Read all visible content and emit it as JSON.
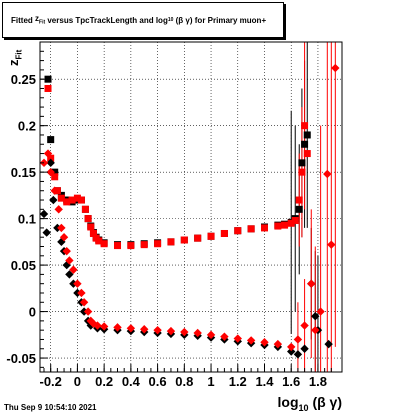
{
  "title": {
    "prefix": "Fitted",
    "z": "z",
    "zsub": "Fit",
    "mid": "versus TpcTrackLength and log",
    "logsub": "10",
    "beta_gamma": "(β γ)",
    "suffix": "for Primary muon+"
  },
  "footer": "Thu Sep  9 10:54:10 2021",
  "axis_labels": {
    "x_main": "log",
    "x_sub": "10",
    "x_tail": "(β γ)",
    "y_main": "z",
    "y_sub": "Fit"
  },
  "chart_data": {
    "type": "scatter",
    "xlim": [
      -0.28,
      1.98
    ],
    "ylim": [
      -0.065,
      0.29
    ],
    "grid": true,
    "xticks": [
      -0.2,
      0,
      0.2,
      0.4,
      0.6,
      0.8,
      1,
      1.2,
      1.4,
      1.6,
      1.8
    ],
    "xtick_labels": [
      "-0.2",
      "0",
      "0.2",
      "0.4",
      "0.6",
      "0.8",
      "1",
      "1.2",
      "1.4",
      "1.6",
      "1.8"
    ],
    "yticks": [
      -0.05,
      0,
      0.05,
      0.1,
      0.15,
      0.2,
      0.25
    ],
    "ytick_labels": [
      "-0.05",
      "0",
      "0.05",
      "0.1",
      "0.15",
      "0.2",
      "0.25"
    ],
    "colors": {
      "red": "#ff0000",
      "black": "#000000"
    },
    "series": [
      {
        "marker": "square",
        "color": "#000000",
        "points": [
          [
            -0.22,
            0.25
          ],
          [
            -0.2,
            0.185
          ],
          [
            -0.17,
            0.15
          ],
          [
            -0.15,
            0.13
          ],
          [
            -0.12,
            0.125
          ],
          [
            -0.08,
            0.12
          ],
          [
            -0.04,
            0.118
          ],
          [
            0,
            0.12
          ],
          [
            0.03,
            0.12
          ],
          [
            0.06,
            0.11
          ],
          [
            0.08,
            0.1
          ],
          [
            0.1,
            0.092
          ],
          [
            0.12,
            0.085
          ],
          [
            0.14,
            0.08
          ],
          [
            0.16,
            0.077
          ],
          [
            0.2,
            0.074
          ],
          [
            0.3,
            0.072
          ],
          [
            0.4,
            0.072
          ],
          [
            0.5,
            0.073
          ],
          [
            0.6,
            0.074
          ],
          [
            0.7,
            0.075
          ],
          [
            0.8,
            0.077
          ],
          [
            0.9,
            0.079
          ],
          [
            1.0,
            0.081
          ],
          [
            1.1,
            0.084
          ],
          [
            1.2,
            0.087
          ],
          [
            1.3,
            0.089
          ],
          [
            1.4,
            0.091
          ],
          [
            1.5,
            0.093
          ],
          [
            1.55,
            0.094
          ],
          [
            1.6,
            0.096
          ],
          [
            1.63,
            0.1
          ],
          [
            1.66,
            0.11
          ],
          [
            1.68,
            0.16
          ],
          [
            1.7,
            0.18
          ],
          [
            1.72,
            0.19
          ]
        ],
        "errors": [
          [
            1.6,
            0.12
          ],
          [
            1.63,
            0.1
          ],
          [
            1.66,
            0.07
          ],
          [
            1.68,
            0.08
          ],
          [
            1.7,
            0.09
          ],
          [
            1.72,
            0.1
          ]
        ]
      },
      {
        "marker": "square",
        "color": "#ff0000",
        "points": [
          [
            -0.22,
            0.24
          ],
          [
            -0.2,
            0.165
          ],
          [
            -0.17,
            0.145
          ],
          [
            -0.15,
            0.13
          ],
          [
            -0.12,
            0.122
          ],
          [
            -0.08,
            0.118
          ],
          [
            -0.04,
            0.12
          ],
          [
            0,
            0.122
          ],
          [
            0.03,
            0.12
          ],
          [
            0.06,
            0.11
          ],
          [
            0.08,
            0.1
          ],
          [
            0.1,
            0.091
          ],
          [
            0.12,
            0.084
          ],
          [
            0.14,
            0.079
          ],
          [
            0.16,
            0.076
          ],
          [
            0.2,
            0.073
          ],
          [
            0.3,
            0.071
          ],
          [
            0.4,
            0.071
          ],
          [
            0.5,
            0.072
          ],
          [
            0.6,
            0.073
          ],
          [
            0.7,
            0.075
          ],
          [
            0.8,
            0.077
          ],
          [
            0.9,
            0.079
          ],
          [
            1.0,
            0.081
          ],
          [
            1.1,
            0.084
          ],
          [
            1.2,
            0.087
          ],
          [
            1.3,
            0.089
          ],
          [
            1.4,
            0.09
          ],
          [
            1.5,
            0.092
          ],
          [
            1.55,
            0.093
          ],
          [
            1.6,
            0.095
          ],
          [
            1.63,
            0.098
          ],
          [
            1.66,
            0.12
          ],
          [
            1.68,
            0.15
          ],
          [
            1.7,
            0.2
          ],
          [
            1.72,
            0.17
          ]
        ],
        "errors": [
          [
            1.66,
            0.05
          ],
          [
            1.68,
            0.07
          ],
          [
            1.7,
            0.09
          ]
        ]
      },
      {
        "marker": "diamond",
        "color": "#000000",
        "points": [
          [
            -0.25,
            0.105
          ],
          [
            -0.23,
            0.085
          ],
          [
            -0.2,
            0.16
          ],
          [
            -0.18,
            0.12
          ],
          [
            -0.15,
            0.09
          ],
          [
            -0.12,
            0.075
          ],
          [
            -0.1,
            0.065
          ],
          [
            -0.08,
            0.05
          ],
          [
            -0.06,
            0.04
          ],
          [
            -0.03,
            0.03
          ],
          [
            0,
            0.02
          ],
          [
            0.03,
            0.01
          ],
          [
            0.05,
            0.0
          ],
          [
            0.08,
            -0.01
          ],
          [
            0.1,
            -0.015
          ],
          [
            0.15,
            -0.018
          ],
          [
            0.2,
            -0.019
          ],
          [
            0.3,
            -0.02
          ],
          [
            0.4,
            -0.021
          ],
          [
            0.5,
            -0.022
          ],
          [
            0.6,
            -0.023
          ],
          [
            0.7,
            -0.024
          ],
          [
            0.8,
            -0.025
          ],
          [
            0.9,
            -0.026
          ],
          [
            1.0,
            -0.028
          ],
          [
            1.1,
            -0.03
          ],
          [
            1.2,
            -0.032
          ],
          [
            1.3,
            -0.034
          ],
          [
            1.4,
            -0.036
          ],
          [
            1.5,
            -0.038
          ],
          [
            1.6,
            -0.043
          ],
          [
            1.65,
            -0.046
          ],
          [
            1.7,
            -0.04
          ],
          [
            1.75,
            0.03
          ],
          [
            1.78,
            -0.005
          ],
          [
            1.8,
            -0.02
          ],
          [
            1.88,
            -0.035
          ]
        ],
        "errors": [
          [
            1.75,
            0.06
          ],
          [
            1.78,
            0.07
          ],
          [
            1.8,
            0.08
          ]
        ]
      },
      {
        "marker": "diamond",
        "color": "#ff0000",
        "points": [
          [
            -0.25,
            0.16
          ],
          [
            -0.22,
            0.17
          ],
          [
            -0.2,
            0.15
          ],
          [
            -0.17,
            0.13
          ],
          [
            -0.14,
            0.11
          ],
          [
            -0.12,
            0.09
          ],
          [
            -0.1,
            0.08
          ],
          [
            -0.08,
            0.065
          ],
          [
            -0.06,
            0.055
          ],
          [
            -0.03,
            0.045
          ],
          [
            0,
            0.03
          ],
          [
            0.03,
            0.02
          ],
          [
            0.05,
            0.01
          ],
          [
            0.08,
            0.0
          ],
          [
            0.1,
            -0.01
          ],
          [
            0.12,
            -0.013
          ],
          [
            0.15,
            -0.015
          ],
          [
            0.2,
            -0.016
          ],
          [
            0.3,
            -0.017
          ],
          [
            0.4,
            -0.018
          ],
          [
            0.5,
            -0.019
          ],
          [
            0.6,
            -0.02
          ],
          [
            0.7,
            -0.021
          ],
          [
            0.8,
            -0.022
          ],
          [
            0.9,
            -0.023
          ],
          [
            1.0,
            -0.025
          ],
          [
            1.1,
            -0.027
          ],
          [
            1.2,
            -0.029
          ],
          [
            1.3,
            -0.031
          ],
          [
            1.4,
            -0.033
          ],
          [
            1.5,
            -0.035
          ],
          [
            1.6,
            -0.038
          ],
          [
            1.65,
            -0.03
          ],
          [
            1.7,
            -0.015
          ],
          [
            1.75,
            0.03
          ],
          [
            1.78,
            -0.02
          ],
          [
            1.82,
            0.0
          ],
          [
            1.87,
            0.148
          ],
          [
            1.9,
            0.072
          ],
          [
            1.93,
            0.262
          ]
        ],
        "errors": [
          [
            1.65,
            0.04
          ],
          [
            1.7,
            0.05
          ],
          [
            1.75,
            0.08
          ],
          [
            1.78,
            0.09
          ],
          [
            1.82,
            0.2
          ],
          [
            1.87,
            0.3
          ],
          [
            1.9,
            0.3
          ],
          [
            1.93,
            0.3
          ]
        ]
      }
    ]
  }
}
